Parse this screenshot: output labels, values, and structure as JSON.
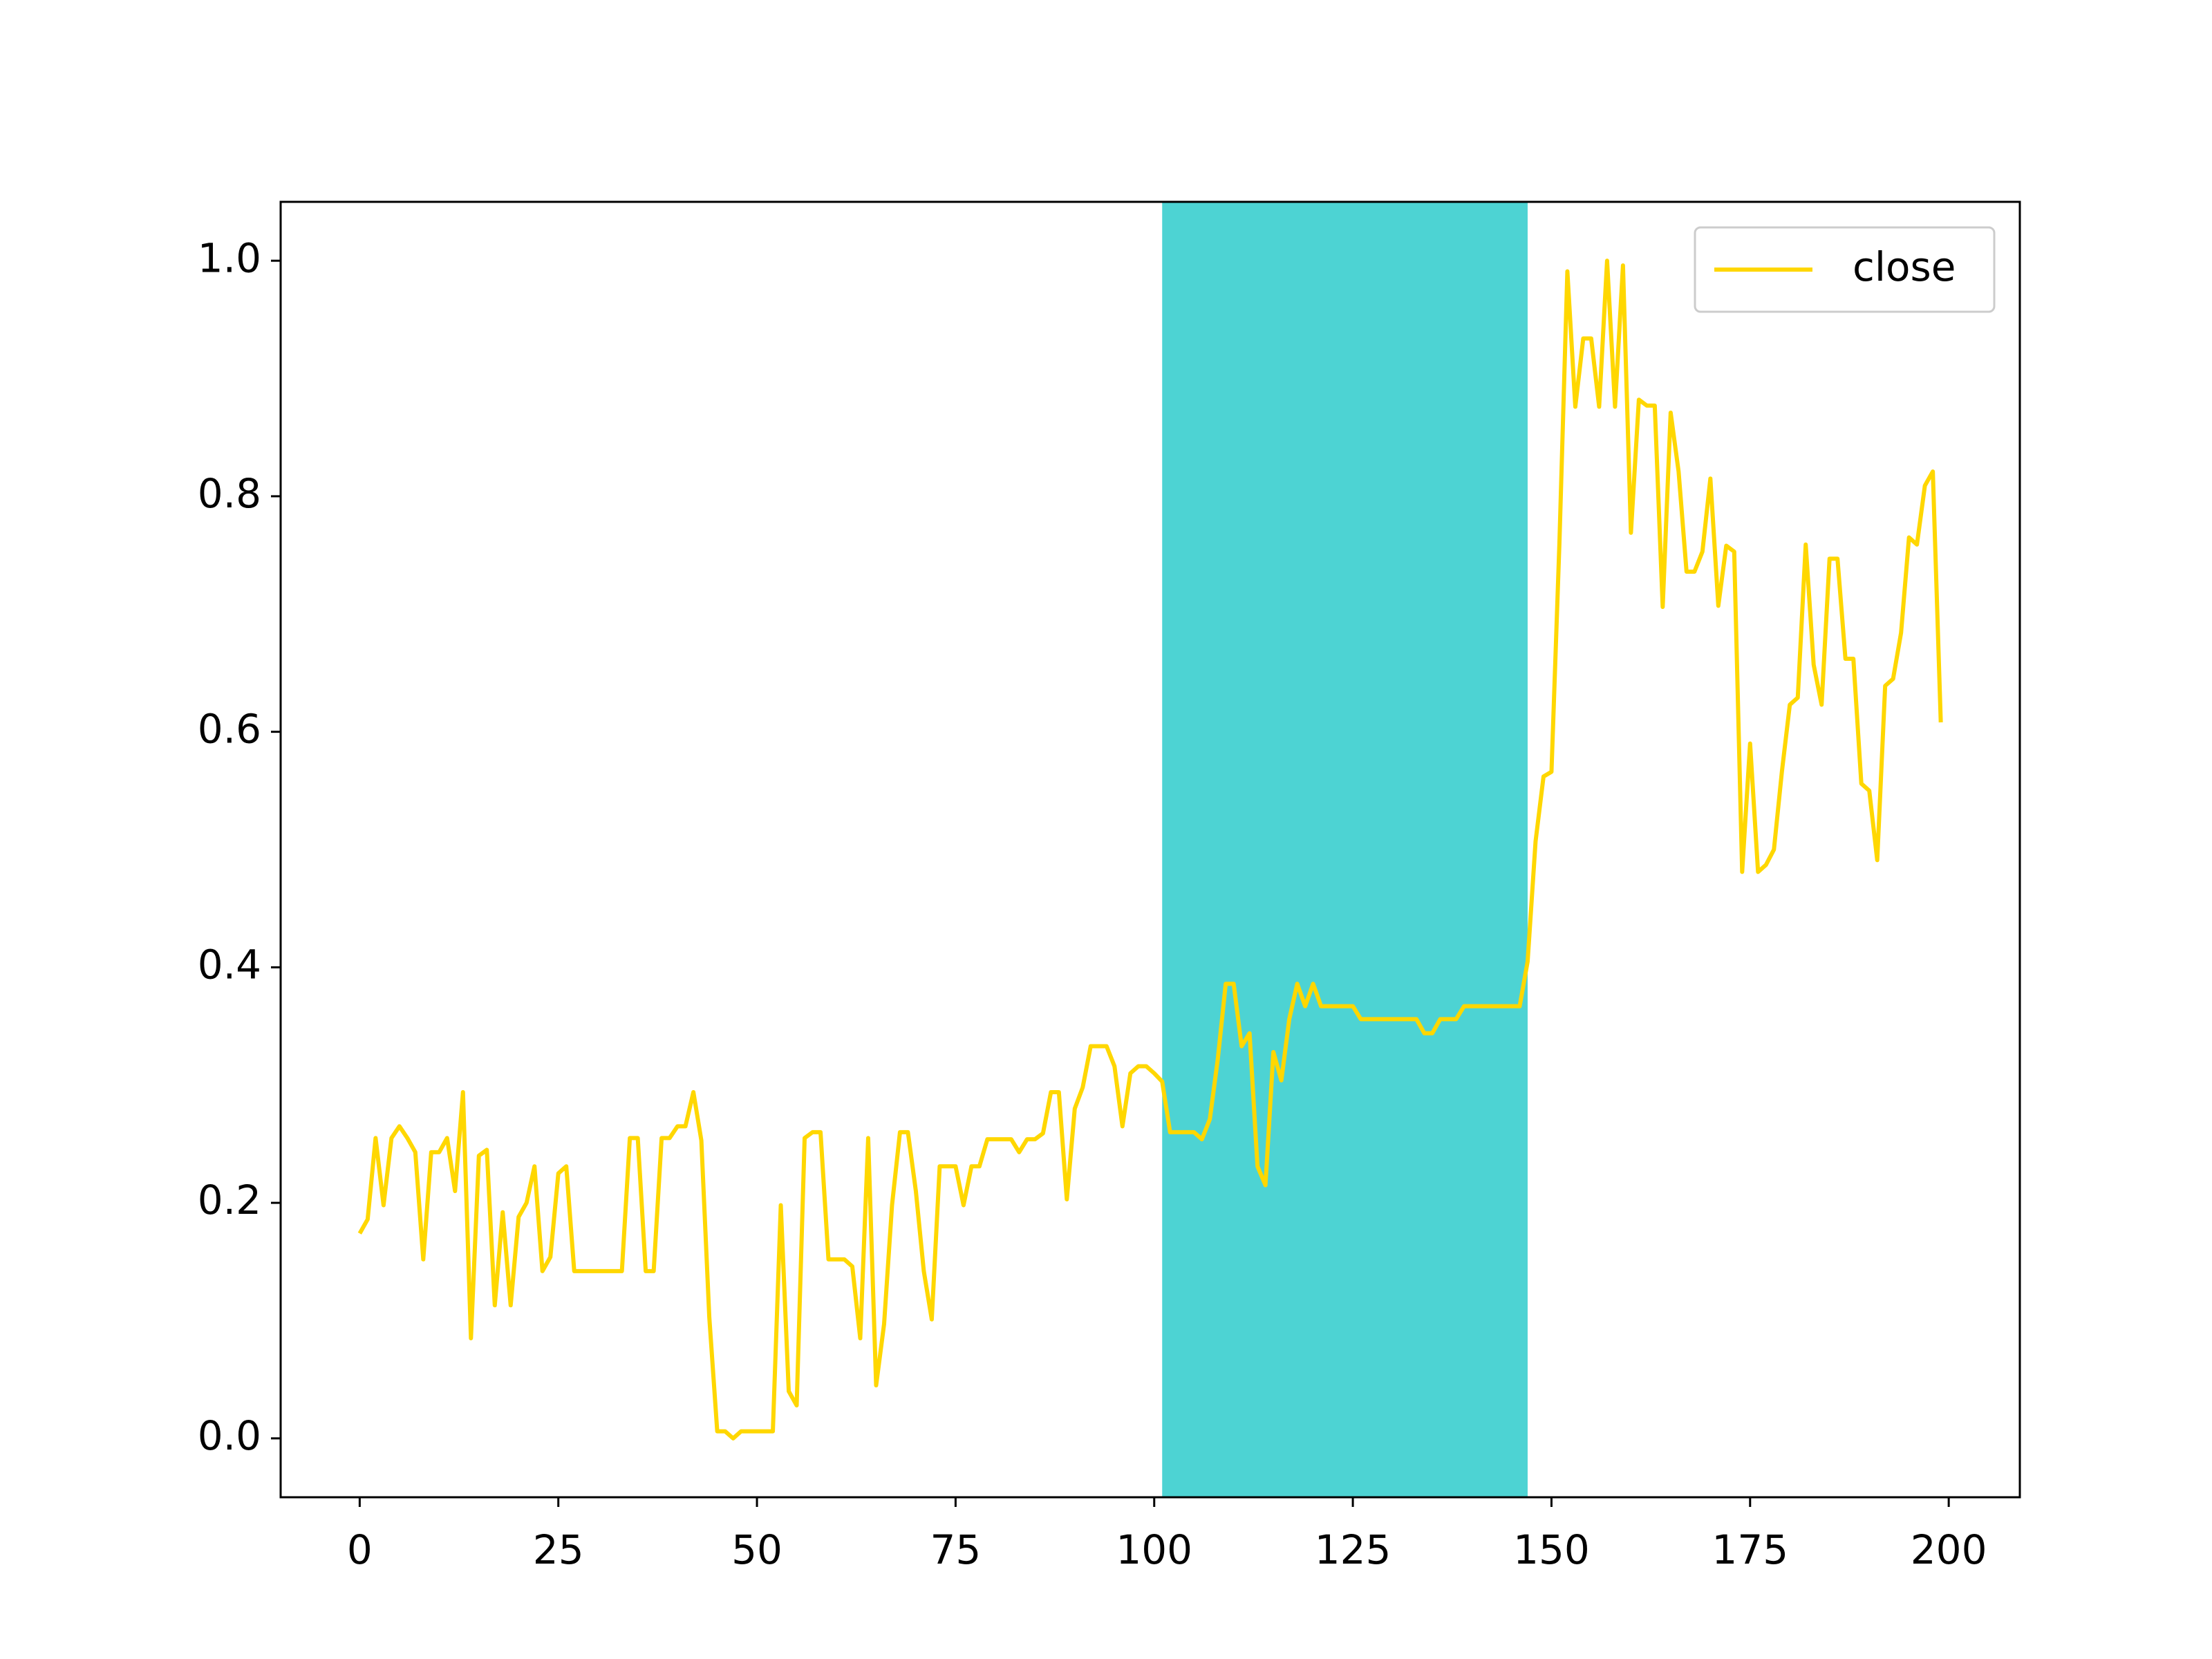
{
  "chart_data": {
    "type": "line",
    "x": [
      0,
      1,
      2,
      3,
      4,
      5,
      6,
      7,
      8,
      9,
      10,
      11,
      12,
      13,
      14,
      15,
      16,
      17,
      18,
      19,
      20,
      21,
      22,
      23,
      24,
      25,
      26,
      27,
      28,
      29,
      30,
      31,
      32,
      33,
      34,
      35,
      36,
      37,
      38,
      39,
      40,
      41,
      42,
      43,
      44,
      45,
      46,
      47,
      48,
      49,
      50,
      51,
      52,
      53,
      54,
      55,
      56,
      57,
      58,
      59,
      60,
      61,
      62,
      63,
      64,
      65,
      66,
      67,
      68,
      69,
      70,
      71,
      72,
      73,
      74,
      75,
      76,
      77,
      78,
      79,
      80,
      81,
      82,
      83,
      84,
      85,
      86,
      87,
      88,
      89,
      90,
      91,
      92,
      93,
      94,
      95,
      96,
      97,
      98,
      99,
      100,
      101,
      102,
      103,
      104,
      105,
      106,
      107,
      108,
      109,
      110,
      111,
      112,
      113,
      114,
      115,
      116,
      117,
      118,
      119,
      120,
      121,
      122,
      123,
      124,
      125,
      126,
      127,
      128,
      129,
      130,
      131,
      132,
      133,
      134,
      135,
      136,
      137,
      138,
      139,
      140,
      141,
      142,
      143,
      144,
      145,
      146,
      147,
      148,
      149,
      150,
      151,
      152,
      153,
      154,
      155,
      156,
      157,
      158,
      159,
      160,
      161,
      162,
      163,
      164,
      165,
      166,
      167,
      168,
      169,
      170,
      171,
      172,
      173,
      174,
      175,
      176,
      177,
      178,
      179,
      180,
      181,
      182,
      183,
      184,
      185,
      186,
      187,
      188,
      189,
      190,
      191,
      192,
      193,
      194,
      195,
      196,
      197,
      198,
      199
    ],
    "series": [
      {
        "name": "close",
        "color": "#ffd700",
        "values": [
          0.174,
          0.186,
          0.255,
          0.198,
          0.255,
          0.265,
          0.255,
          0.243,
          0.152,
          0.243,
          0.243,
          0.255,
          0.21,
          0.294,
          0.085,
          0.24,
          0.245,
          0.113,
          0.192,
          0.113,
          0.188,
          0.2,
          0.231,
          0.142,
          0.154,
          0.225,
          0.231,
          0.142,
          0.142,
          0.142,
          0.142,
          0.142,
          0.142,
          0.142,
          0.255,
          0.255,
          0.142,
          0.142,
          0.255,
          0.255,
          0.265,
          0.265,
          0.294,
          0.253,
          0.103,
          0.006,
          0.006,
          0.0,
          0.006,
          0.006,
          0.006,
          0.006,
          0.006,
          0.198,
          0.04,
          0.028,
          0.255,
          0.26,
          0.26,
          0.152,
          0.152,
          0.152,
          0.146,
          0.085,
          0.255,
          0.045,
          0.097,
          0.198,
          0.26,
          0.26,
          0.21,
          0.142,
          0.101,
          0.231,
          0.231,
          0.231,
          0.198,
          0.231,
          0.231,
          0.254,
          0.254,
          0.254,
          0.254,
          0.243,
          0.254,
          0.254,
          0.259,
          0.294,
          0.294,
          0.203,
          0.28,
          0.298,
          0.333,
          0.333,
          0.333,
          0.316,
          0.265,
          0.31,
          0.316,
          0.316,
          0.31,
          0.303,
          0.26,
          0.26,
          0.26,
          0.26,
          0.254,
          0.271,
          0.322,
          0.386,
          0.386,
          0.333,
          0.344,
          0.231,
          0.215,
          0.328,
          0.304,
          0.356,
          0.386,
          0.367,
          0.386,
          0.367,
          0.367,
          0.367,
          0.367,
          0.367,
          0.356,
          0.356,
          0.356,
          0.356,
          0.356,
          0.356,
          0.356,
          0.356,
          0.344,
          0.344,
          0.356,
          0.356,
          0.356,
          0.367,
          0.367,
          0.367,
          0.367,
          0.367,
          0.367,
          0.367,
          0.367,
          0.405,
          0.507,
          0.562,
          0.566,
          0.76,
          0.991,
          0.876,
          0.934,
          0.934,
          0.876,
          1.0,
          0.876,
          0.996,
          0.769,
          0.882,
          0.877,
          0.877,
          0.706,
          0.871,
          0.821,
          0.736,
          0.736,
          0.753,
          0.815,
          0.707,
          0.758,
          0.753,
          0.481,
          0.59,
          0.481,
          0.487,
          0.5,
          0.566,
          0.623,
          0.629,
          0.759,
          0.657,
          0.623,
          0.747,
          0.747,
          0.662,
          0.662,
          0.556,
          0.55,
          0.491,
          0.639,
          0.645,
          0.684,
          0.765,
          0.759,
          0.809,
          0.821,
          0.608
        ]
      }
    ],
    "shaded_span": [
      101,
      147
    ],
    "span_color": "#4dd3d3",
    "xlim": [
      -9.95,
      208.95
    ],
    "ylim": [
      -0.05,
      1.05
    ],
    "xticks": [
      0,
      25,
      50,
      75,
      100,
      125,
      150,
      175,
      200
    ],
    "yticks": [
      {
        "value": 0,
        "label": "0.0"
      },
      0.2,
      0.4,
      0.6,
      0.8,
      {
        "value": 1,
        "label": "1.0"
      }
    ],
    "legend": "upper right"
  }
}
